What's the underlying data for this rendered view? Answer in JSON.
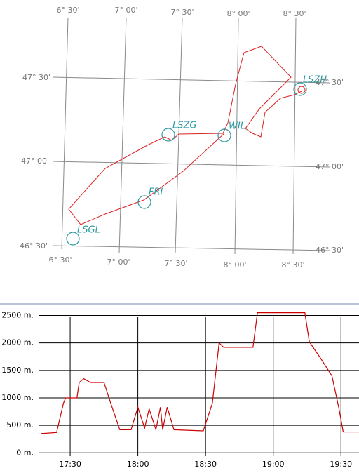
{
  "map": {
    "longitude_labels_top": [
      "6° 30'",
      "7° 00'",
      "7° 30'",
      "8° 00'",
      "8° 30'"
    ],
    "longitude_labels_bottom": [
      "6° 30'",
      "7° 00'",
      "7° 30'",
      "8° 00'",
      "8° 30'"
    ],
    "latitude_labels_left": [
      "47° 30'",
      "47° 00'",
      "46° 30'"
    ],
    "latitude_labels_right": [
      "47° 30'",
      "47° 00'",
      "46° 30'"
    ],
    "waypoints": [
      "LSZH",
      "LSZG",
      "WIL",
      "FRI",
      "LSGL"
    ]
  },
  "chart_data": {
    "type": "line",
    "x": [
      "17:17",
      "17:24",
      "17:27",
      "17:28",
      "17:33",
      "17:34",
      "17:36",
      "17:39",
      "17:45",
      "17:48",
      "17:52",
      "17:57",
      "18:00",
      "18:03",
      "18:05",
      "18:08",
      "18:10",
      "18:11",
      "18:13",
      "18:16",
      "18:29",
      "18:33",
      "18:36",
      "18:38",
      "18:51",
      "18:53",
      "18:54",
      "19:14",
      "19:16",
      "19:21",
      "19:26",
      "19:29",
      "19:31",
      "19:38"
    ],
    "series": [
      {
        "color": "#cc0000",
        "values": [
          350,
          370,
          900,
          1000,
          1000,
          1280,
          1350,
          1280,
          1280,
          900,
          420,
          420,
          830,
          450,
          800,
          420,
          830,
          420,
          830,
          420,
          400,
          900,
          2000,
          1920,
          1920,
          2550,
          2550,
          2550,
          2020,
          1720,
          1400,
          830,
          380,
          380
        ]
      }
    ],
    "xlim": [
      "17:16",
      "19:38"
    ],
    "xticks": [
      "17:30",
      "18:00",
      "18:30",
      "19:00",
      "19:30"
    ],
    "ylim": [
      -60,
      2660
    ],
    "yticks": [
      {
        "value": 0,
        "label": "0 m."
      },
      {
        "value": 500,
        "label": "500 m."
      },
      {
        "value": 1000,
        "label": "1000 m."
      },
      {
        "value": 1500,
        "label": "1500 m."
      },
      {
        "value": 2000,
        "label": "2000 m."
      },
      {
        "value": 2500,
        "label": "2500 m."
      }
    ],
    "grid": true
  }
}
